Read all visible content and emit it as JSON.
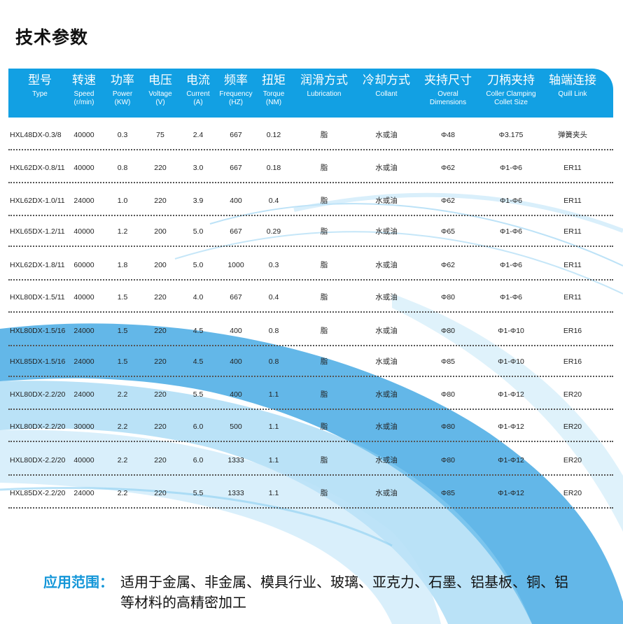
{
  "title": "技术参数",
  "colors": {
    "header_bg": "#12a0e3",
    "label_blue": "#1396d8"
  },
  "table": {
    "headers": [
      {
        "zh": "型号",
        "en": "Type"
      },
      {
        "zh": "转速",
        "en": "Speed",
        "unit": "(r/min)"
      },
      {
        "zh": "功率",
        "en": "Power",
        "unit": "(KW)"
      },
      {
        "zh": "电压",
        "en": "Voltage",
        "unit": "(V)"
      },
      {
        "zh": "电流",
        "en": "Current",
        "unit": "(A)"
      },
      {
        "zh": "频率",
        "en": "Frequency",
        "unit": "(HZ)"
      },
      {
        "zh": "扭矩",
        "en": "Torque",
        "unit": "(NM)"
      },
      {
        "zh": "润滑方式",
        "en": "Lubrication"
      },
      {
        "zh": "冷却方式",
        "en": "Collant"
      },
      {
        "zh": "夹持尺寸",
        "en": "Overal",
        "unit": "Dimensions"
      },
      {
        "zh": "刀柄夹持",
        "en": "Coller Clamping",
        "unit": "Collet Size"
      },
      {
        "zh": "轴端连接",
        "en": "Quill Link"
      }
    ],
    "rows": [
      [
        "HXL48DX-0.3/8",
        "40000",
        "0.3",
        "75",
        "2.4",
        "667",
        "0.12",
        "脂",
        "水或油",
        "Φ48",
        "Φ3.175",
        "弹簧夹头"
      ],
      [
        "HXL62DX-0.8/11",
        "40000",
        "0.8",
        "220",
        "3.0",
        "667",
        "0.18",
        "脂",
        "水或油",
        "Φ62",
        "Φ1-Φ6",
        "ER11"
      ],
      [
        "HXL62DX-1.0/11",
        "24000",
        "1.0",
        "220",
        "3.9",
        "400",
        "0.4",
        "脂",
        "水或油",
        "Φ62",
        "Φ1-Φ6",
        "ER11"
      ],
      [
        "HXL65DX-1.2/11",
        "40000",
        "1.2",
        "200",
        "5.0",
        "667",
        "0.29",
        "脂",
        "水或油",
        "Φ65",
        "Φ1-Φ6",
        "ER11"
      ],
      [
        "HXL62DX-1.8/11",
        "60000",
        "1.8",
        "200",
        "5.0",
        "1000",
        "0.3",
        "脂",
        "水或油",
        "Φ62",
        "Φ1-Φ6",
        "ER11"
      ],
      [
        "HXL80DX-1.5/11",
        "40000",
        "1.5",
        "220",
        "4.0",
        "667",
        "0.4",
        "脂",
        "水或油",
        "Φ80",
        "Φ1-Φ6",
        "ER11"
      ],
      [
        "HXL80DX-1.5/16",
        "24000",
        "1.5",
        "220",
        "4.5",
        "400",
        "0.8",
        "脂",
        "水或油",
        "Φ80",
        "Φ1-Φ10",
        "ER16"
      ],
      [
        "HXL85DX-1.5/16",
        "24000",
        "1.5",
        "220",
        "4.5",
        "400",
        "0.8",
        "脂",
        "水或油",
        "Φ85",
        "Φ1-Φ10",
        "ER16"
      ],
      [
        "HXL80DX-2.2/20",
        "24000",
        "2.2",
        "220",
        "5.5",
        "400",
        "1.1",
        "脂",
        "水或油",
        "Φ80",
        "Φ1-Φ12",
        "ER20"
      ],
      [
        "HXL80DX-2.2/20",
        "30000",
        "2.2",
        "220",
        "6.0",
        "500",
        "1.1",
        "脂",
        "水或油",
        "Φ80",
        "Φ1-Φ12",
        "ER20"
      ],
      [
        "HXL80DX-2.2/20",
        "40000",
        "2.2",
        "220",
        "6.0",
        "1333",
        "1.1",
        "脂",
        "水或油",
        "Φ80",
        "Φ1-Φ12",
        "ER20"
      ],
      [
        "HXL85DX-2.2/20",
        "24000",
        "2.2",
        "220",
        "5.5",
        "1333",
        "1.1",
        "脂",
        "水或油",
        "Φ85",
        "Φ1-Φ12",
        "ER20"
      ]
    ]
  },
  "application": {
    "label": "应用范围：",
    "text": "适用于金属、非金属、模具行业、玻璃、亚克力、石墨、铝基板、铜、铝等材料的高精密加工"
  }
}
